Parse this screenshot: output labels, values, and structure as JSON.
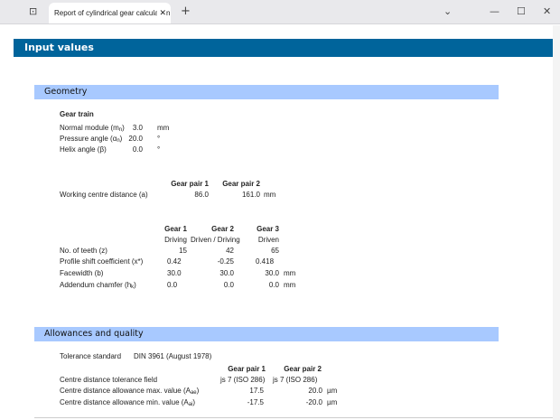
{
  "browser": {
    "tab_title": "Report of cylindrical gear calculation",
    "icons": [
      "tab-actions-icon",
      "close-icon",
      "new-tab-icon",
      "chevron-down-icon",
      "minimize-icon",
      "maximize-icon",
      "window-close-icon"
    ]
  },
  "colors": {
    "title_bar": "#00649b",
    "section_bar": "#a8c9ff"
  },
  "title": "Input values",
  "geometry": {
    "heading": "Geometry",
    "gear_train": {
      "heading": "Gear train",
      "rows": [
        {
          "label": "Normal module (m",
          "sub": "n",
          "label_end": ")",
          "value": "3.0",
          "unit": "mm"
        },
        {
          "label": "Pressure angle (α",
          "sub": "n",
          "label_end": ")",
          "value": "20.0",
          "unit": "°"
        },
        {
          "label": "Helix angle (β)",
          "value": "0.0",
          "unit": "°"
        }
      ]
    },
    "pairs": {
      "headers": [
        "Gear pair 1",
        "Gear pair 2"
      ],
      "row": {
        "label": "Working centre distance (a)",
        "values": [
          "86.0",
          "161.0"
        ],
        "unit": "mm"
      }
    },
    "gears": {
      "headers": [
        "Gear 1",
        "Gear 2",
        "Gear 3"
      ],
      "roles": [
        "Driving",
        "Driven / Driving",
        "Driven"
      ],
      "rows": [
        {
          "label": "No. of teeth (z)",
          "values": [
            "15",
            "42",
            "65"
          ],
          "unit": ""
        },
        {
          "label": "Profile shift coefficient (x*)",
          "values": [
            "0.42",
            "-0.25",
            "0.418"
          ],
          "unit": ""
        },
        {
          "label": "Facewidth (b)",
          "values": [
            "30.0",
            "30.0",
            "30.0"
          ],
          "unit": "mm"
        },
        {
          "label": "Addendum chamfer (h",
          "sub": "k",
          "label_end": ")",
          "values": [
            "0.0",
            "0.0",
            "0.0"
          ],
          "unit": "mm"
        }
      ]
    }
  },
  "allowances": {
    "heading": "Allowances and quality",
    "standard_label": "Tolerance standard",
    "standard_value": "DIN 3961 (August 1978)",
    "headers": [
      "Gear pair 1",
      "Gear pair 2"
    ],
    "rows": [
      {
        "label": "Centre distance tolerance field",
        "values": [
          "js 7 (ISO 286)",
          "js 7 (ISO 286)"
        ],
        "unit": ""
      },
      {
        "label": "Centre distance allowance max. value (A",
        "sub": "ae",
        "label_end": ")",
        "values": [
          "17.5",
          "20.0"
        ],
        "unit": "µm"
      },
      {
        "label": "Centre distance allowance min. value (A",
        "sub": "ai",
        "label_end": ")",
        "values": [
          "-17.5",
          "-20.0"
        ],
        "unit": "µm"
      }
    ]
  }
}
